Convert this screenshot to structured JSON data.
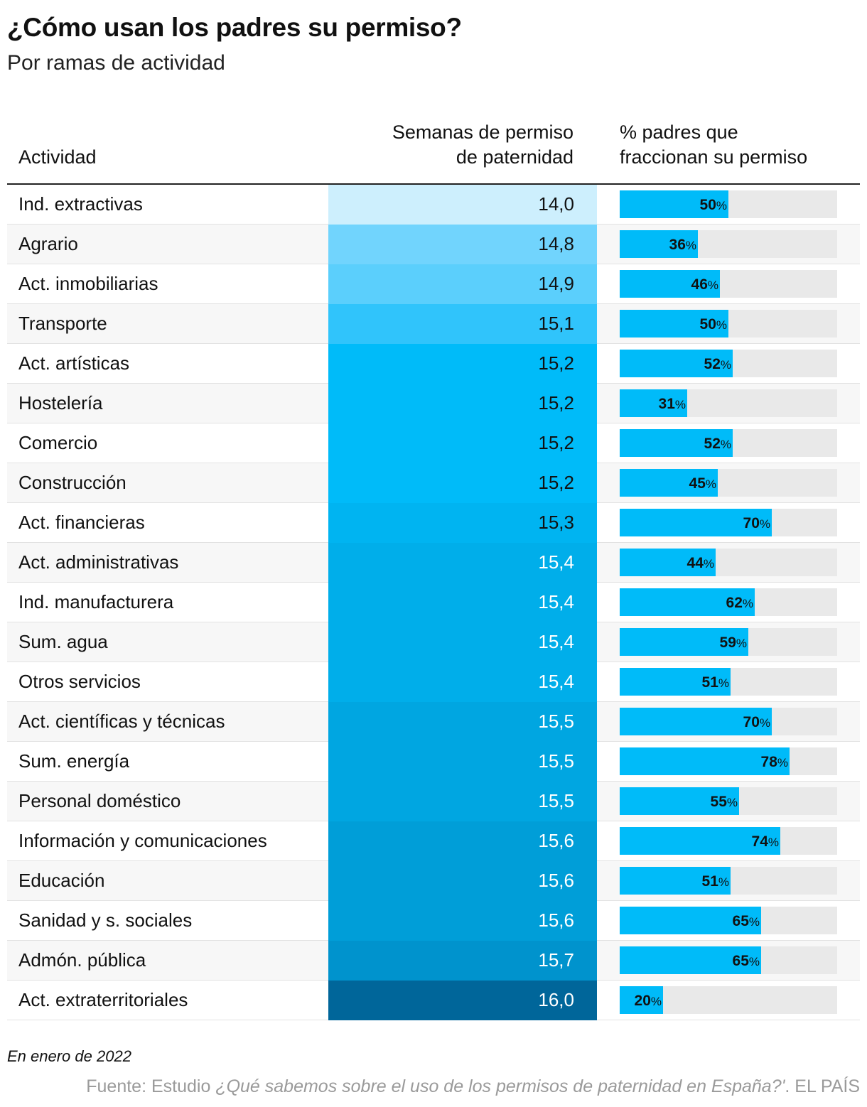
{
  "title": "¿Cómo usan los padres su permiso?",
  "subtitle": "Por ramas de actividad",
  "columns": {
    "activity": "Actividad",
    "weeks_line1": "Semanas de permiso",
    "weeks_line2": "de paternidad",
    "pct_line1": "% padres que",
    "pct_line2": "fraccionan su permiso"
  },
  "colors": {
    "bar": "#00bbf9",
    "bar_track": "#e9e9e9",
    "weeks_scale_low": "#cdeffd",
    "weeks_scale_high": "#00669a"
  },
  "chart_data": {
    "type": "table",
    "rows": [
      {
        "activity": "Ind. extractivas",
        "weeks": "14,0",
        "weeks_num": 14.0,
        "pct_label": "50",
        "pct": 50
      },
      {
        "activity": "Agrario",
        "weeks": "14,8",
        "weeks_num": 14.8,
        "pct_label": "36",
        "pct": 36
      },
      {
        "activity": "Act. inmobiliarias",
        "weeks": "14,9",
        "weeks_num": 14.9,
        "pct_label": "46",
        "pct": 46
      },
      {
        "activity": "Transporte",
        "weeks": "15,1",
        "weeks_num": 15.1,
        "pct_label": "50",
        "pct": 50
      },
      {
        "activity": "Act. artísticas",
        "weeks": "15,2",
        "weeks_num": 15.2,
        "pct_label": "52",
        "pct": 52
      },
      {
        "activity": "Hostelería",
        "weeks": "15,2",
        "weeks_num": 15.2,
        "pct_label": "31",
        "pct": 31
      },
      {
        "activity": "Comercio",
        "weeks": "15,2",
        "weeks_num": 15.2,
        "pct_label": "52",
        "pct": 52
      },
      {
        "activity": "Construcción",
        "weeks": "15,2",
        "weeks_num": 15.2,
        "pct_label": "45",
        "pct": 45
      },
      {
        "activity": "Act. financieras",
        "weeks": "15,3",
        "weeks_num": 15.3,
        "pct_label": "70",
        "pct": 70
      },
      {
        "activity": "Act. administrativas",
        "weeks": "15,4",
        "weeks_num": 15.4,
        "pct_label": "44",
        "pct": 44
      },
      {
        "activity": "Ind. manufacturera",
        "weeks": "15,4",
        "weeks_num": 15.4,
        "pct_label": "62",
        "pct": 62
      },
      {
        "activity": "Sum. agua",
        "weeks": "15,4",
        "weeks_num": 15.4,
        "pct_label": "59",
        "pct": 59
      },
      {
        "activity": "Otros servicios",
        "weeks": "15,4",
        "weeks_num": 15.4,
        "pct_label": "51",
        "pct": 51
      },
      {
        "activity": "Act. científicas y técnicas",
        "weeks": "15,5",
        "weeks_num": 15.5,
        "pct_label": "70",
        "pct": 70
      },
      {
        "activity": "Sum. energía",
        "weeks": "15,5",
        "weeks_num": 15.5,
        "pct_label": "78",
        "pct": 78
      },
      {
        "activity": "Personal doméstico",
        "weeks": "15,5",
        "weeks_num": 15.5,
        "pct_label": "55",
        "pct": 55
      },
      {
        "activity": "Información y comunicaciones",
        "weeks": "15,6",
        "weeks_num": 15.6,
        "pct_label": "74",
        "pct": 74
      },
      {
        "activity": "Educación",
        "weeks": "15,6",
        "weeks_num": 15.6,
        "pct_label": "51",
        "pct": 51
      },
      {
        "activity": "Sanidad y s. sociales",
        "weeks": "15,6",
        "weeks_num": 15.6,
        "pct_label": "65",
        "pct": 65
      },
      {
        "activity": "Admón. pública",
        "weeks": "15,7",
        "weeks_num": 15.7,
        "pct_label": "65",
        "pct": 65
      },
      {
        "activity": "Act. extraterritoriales",
        "weeks": "16,0",
        "weeks_num": 16.0,
        "pct_label": "20",
        "pct": 20
      }
    ],
    "pct_range": [
      0,
      100
    ],
    "pct_sign": "%"
  },
  "footer": {
    "note": "En enero de 2022",
    "source_prefix": "Fuente: Estudio ",
    "source_title": "¿Qué sabemos sobre el uso de los permisos de paternidad en España?'",
    "source_suffix": ". EL PAÍS"
  }
}
